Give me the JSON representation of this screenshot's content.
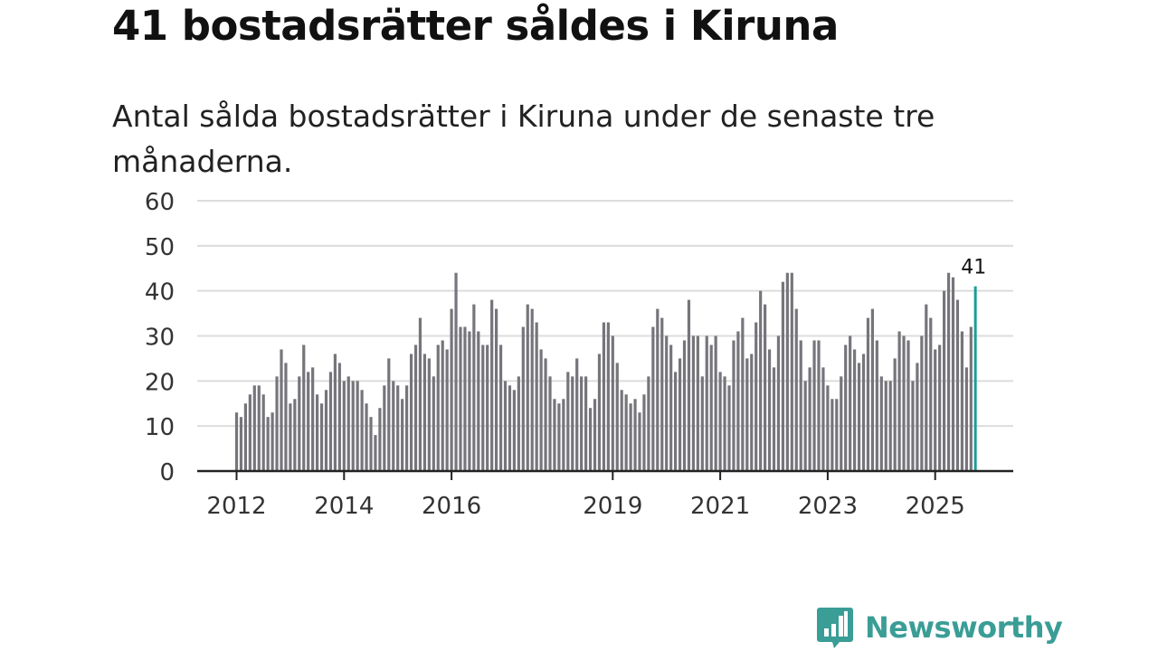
{
  "title": "41 bostadsrätter såldes i Kiruna",
  "subtitle": "Antal sålda bostadsrätter i Kiruna under de senaste tre månaderna.",
  "brand": {
    "name": "Newsworthy",
    "icon": "newsworthy-logo-icon",
    "color": "#3a9d96"
  },
  "colors": {
    "bar": "#76757b",
    "highlight": "#1a9e96",
    "grid": "#dcdcdc",
    "axis": "#222222"
  },
  "chart_data": {
    "type": "bar",
    "title": "41 bostadsrätter såldes i Kiruna",
    "xlabel": "",
    "ylabel": "",
    "ylim": [
      0,
      60
    ],
    "yticks": [
      0,
      10,
      20,
      30,
      40,
      50,
      60
    ],
    "xticks": [
      {
        "label": "2012",
        "index": 0
      },
      {
        "label": "2014",
        "index": 24
      },
      {
        "label": "2016",
        "index": 48
      },
      {
        "label": "2019",
        "index": 84
      },
      {
        "label": "2021",
        "index": 108
      },
      {
        "label": "2023",
        "index": 132
      },
      {
        "label": "2025",
        "index": 156
      }
    ],
    "start": "2012-01",
    "values": [
      13,
      12,
      15,
      17,
      19,
      19,
      17,
      12,
      13,
      21,
      27,
      24,
      15,
      16,
      21,
      28,
      22,
      23,
      17,
      15,
      18,
      22,
      26,
      24,
      20,
      21,
      20,
      20,
      18,
      15,
      12,
      8,
      14,
      19,
      25,
      20,
      19,
      16,
      19,
      26,
      28,
      34,
      26,
      25,
      21,
      28,
      29,
      27,
      36,
      44,
      32,
      32,
      31,
      37,
      31,
      28,
      28,
      38,
      36,
      28,
      20,
      19,
      18,
      21,
      32,
      37,
      36,
      33,
      27,
      25,
      21,
      16,
      15,
      16,
      22,
      21,
      25,
      21,
      21,
      14,
      16,
      26,
      33,
      33,
      30,
      24,
      18,
      17,
      15,
      16,
      13,
      17,
      21,
      32,
      36,
      34,
      30,
      28,
      22,
      25,
      29,
      38,
      30,
      30,
      21,
      30,
      28,
      30,
      22,
      21,
      19,
      29,
      31,
      34,
      25,
      26,
      33,
      40,
      37,
      27,
      23,
      30,
      42,
      44,
      44,
      36,
      29,
      20,
      23,
      29,
      29,
      23,
      19,
      16,
      16,
      21,
      28,
      30,
      27,
      24,
      26,
      34,
      36,
      29,
      21,
      20,
      20,
      25,
      31,
      30,
      29,
      20,
      24,
      30,
      37,
      34,
      27,
      28,
      40,
      44,
      43,
      38,
      31,
      23,
      32,
      41
    ],
    "highlight_last": true,
    "data_labels": [
      {
        "index": 165,
        "text": "41"
      }
    ]
  }
}
